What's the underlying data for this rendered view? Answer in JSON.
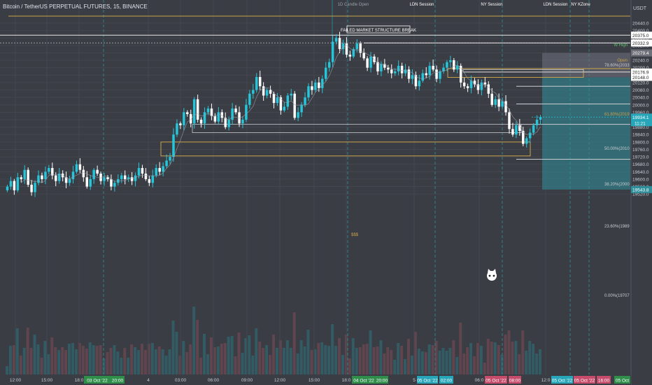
{
  "symbol_title": "Bitcoin / TetherUS PERPETUAL FUTURES, 15, BINANCE",
  "currency": "USDT",
  "colors": {
    "background": "#3b3d45",
    "up": "#26c6da",
    "down": "#ffffff",
    "level_line": "#c9cbd1",
    "gold": "#c8a24a",
    "session_line": "#2f7f86",
    "target_fill": "#2e8f9a",
    "projection_top_fill": "#70737d",
    "ma_line": "#9aa0a8"
  },
  "annotations": {
    "failed_break": "FAILED MARKET STRUCTURE BREAK",
    "candle_open": "1D Candle Open",
    "ldn_session_1": "LDN Session",
    "ny_session": "NY Session",
    "ldn_session_2": "LDN Session",
    "ny_kzone": "NY KZone",
    "zone_label": "$$$",
    "w_high": "W High",
    "open": "Open",
    "fib_786": "78.60%(2033",
    "fib_618": "61.80%(2019",
    "fib_500": "50.00%(2010",
    "fib_382": "38.20%(2000",
    "fib_236": "23.60%(1989",
    "fib_000": "0.00%(19707"
  },
  "price_tags": {
    "tag_20375": "20375.0",
    "tag_20332": "20332.9",
    "tag_20279": "20279.4",
    "tag_20176": "20176.9",
    "tag_20148": "20148.0",
    "tag_19934": "19934.1",
    "tag_countdown": "11:21",
    "tag_19543": "19543.8"
  },
  "time_tags": {
    "tag_03oct": "03 Oct '22",
    "tag_2000": "20:00",
    "tag_04oct": "04 Oct '22",
    "tag_2000b": "20:00",
    "tag_05oct_a": "05 Oct '22",
    "tag_0200": "02:00",
    "tag_05oct_b": "05 Oct '22",
    "tag_0800": "08:00",
    "tag_05oct_c": "05 Oct '22",
    "tag_05oct_d": "05 Oct '22",
    "tag_1600": "16:00",
    "tag_05oct_e": "05 Oct"
  },
  "chart_data": {
    "type": "candlestick",
    "title": "Bitcoin / TetherUS PERPETUAL FUTURES, 15, BINANCE",
    "ylabel": "USDT",
    "ylim": [
      19500,
      20500
    ],
    "y_ticks": [
      "20440.0",
      "20400.0",
      "20360.0",
      "20320.0",
      "20280.0",
      "20240.0",
      "20200.0",
      "20160.0",
      "20120.0",
      "20080.0",
      "20040.0",
      "20000.0",
      "19960.0",
      "19920.0",
      "19880.0",
      "19840.0",
      "19800.0",
      "19760.0",
      "19720.0",
      "19680.0",
      "19640.0",
      "19600.0",
      "19560.0",
      "19520.0"
    ],
    "x_ticks": [
      "12:00",
      "15:00",
      "18:0",
      "4",
      "03:00",
      "06:00",
      "09:00",
      "12:00",
      "15:00",
      "18:0",
      "5",
      "06:0",
      "12:0"
    ],
    "grid": true,
    "close_series": [
      19560,
      19590,
      19540,
      19610,
      19600,
      19650,
      19570,
      19530,
      19580,
      19620,
      19600,
      19640,
      19660,
      19620,
      19590,
      19630,
      19610,
      19580,
      19600,
      19640,
      19680,
      19650,
      19610,
      19560,
      19600,
      19650,
      19630,
      19590,
      19610,
      19600,
      19560,
      19580,
      19600,
      19620,
      19600,
      19610,
      19590,
      19620,
      19660,
      19630,
      19600,
      19580,
      19620,
      19660,
      19640,
      19670,
      19700,
      19720,
      19840,
      19900,
      19890,
      19960,
      19950,
      19900,
      20030,
      19920,
      19900,
      19960,
      19980,
      19940,
      19910,
      19960,
      19930,
      19880,
      19920,
      19980,
      19960,
      19900,
      19920,
      20000,
      20060,
      20080,
      20150,
      20100,
      20050,
      20080,
      20060,
      20010,
      20040,
      19970,
      19990,
      20050,
      20060,
      19930,
      19960,
      20000,
      20040,
      20100,
      20080,
      20120,
      20090,
      20140,
      20200,
      20230,
      20340,
      20360,
      20300,
      20330,
      20270,
      20260,
      20300,
      20330,
      20280,
      20250,
      20200,
      20260,
      20230,
      20180,
      20220,
      20200,
      20190,
      20170,
      20180,
      20210,
      20170,
      20190,
      20140,
      20160,
      20100,
      20130,
      20170,
      20160,
      20210,
      20190,
      20140,
      20180,
      20200,
      20230,
      20240,
      20190,
      20210,
      20120,
      20100,
      20090,
      20130,
      20110,
      20080,
      20120,
      20110,
      20060,
      20000,
      20030,
      19990,
      20020,
      19960,
      19870,
      19840,
      19890,
      19860,
      19790,
      19820,
      19850,
      19890,
      19920,
      19934.1
    ],
    "levels": [
      {
        "label": "W High",
        "value": 20375.0
      },
      {
        "label": "Open",
        "value": 20332.9
      },
      {
        "label": "78.60%(2033",
        "value": 20332.9
      },
      {
        "label": "61.80%(2019",
        "value": 20195
      },
      {
        "label": "50.00%(2010",
        "value": 20100
      },
      {
        "label": "38.20%(2000",
        "value": 20005
      },
      {
        "label": "23.60%(1989",
        "value": 19895
      },
      {
        "label": "0.00%(19707",
        "value": 19707
      }
    ],
    "zones": [
      {
        "label": "$$$",
        "low": 19850,
        "high": 19870
      },
      {
        "label": "",
        "low": 19725,
        "high": 19800
      },
      {
        "label": "",
        "low": 20148,
        "high": 20195
      }
    ],
    "last_price": 19934.1
  }
}
